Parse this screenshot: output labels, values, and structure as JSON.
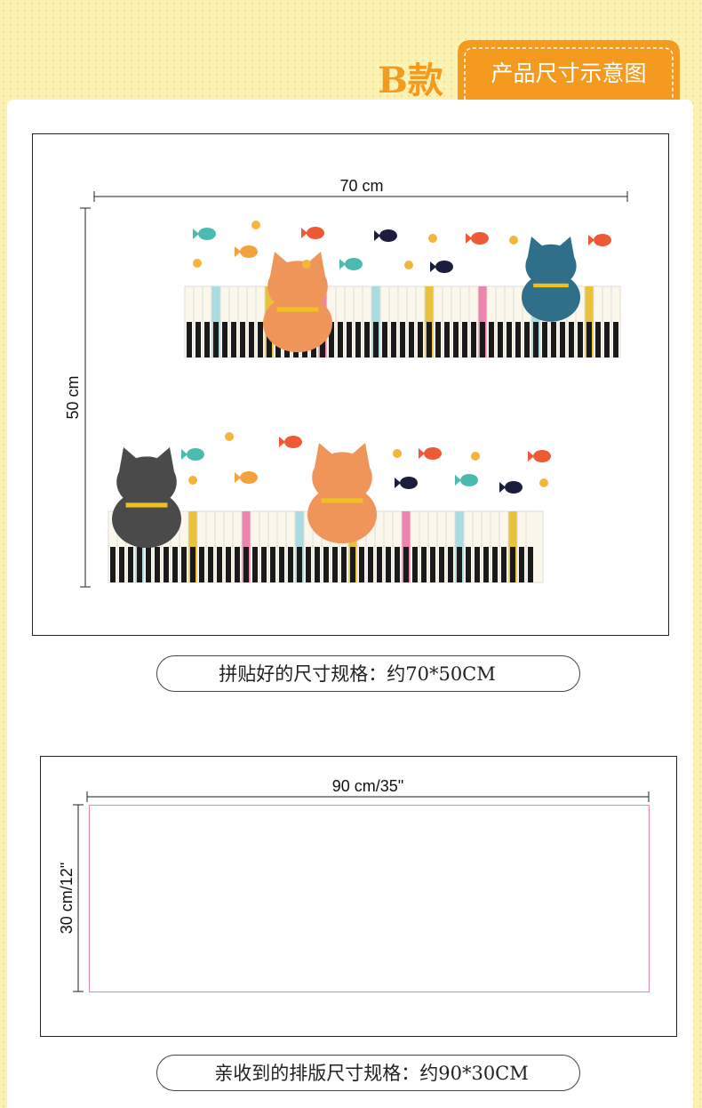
{
  "header": {
    "variant": "B款",
    "tab": "产品尺寸示意图"
  },
  "assembled": {
    "width_label": "70 cm",
    "height_label": "50 cm",
    "caption": "拼贴好的尺寸规格：约70*50CM"
  },
  "layout": {
    "width_label": "90 cm/35\"",
    "height_label": "30 cm/12\"",
    "caption": "亲收到的排版尺寸规格：约90*30CM"
  }
}
